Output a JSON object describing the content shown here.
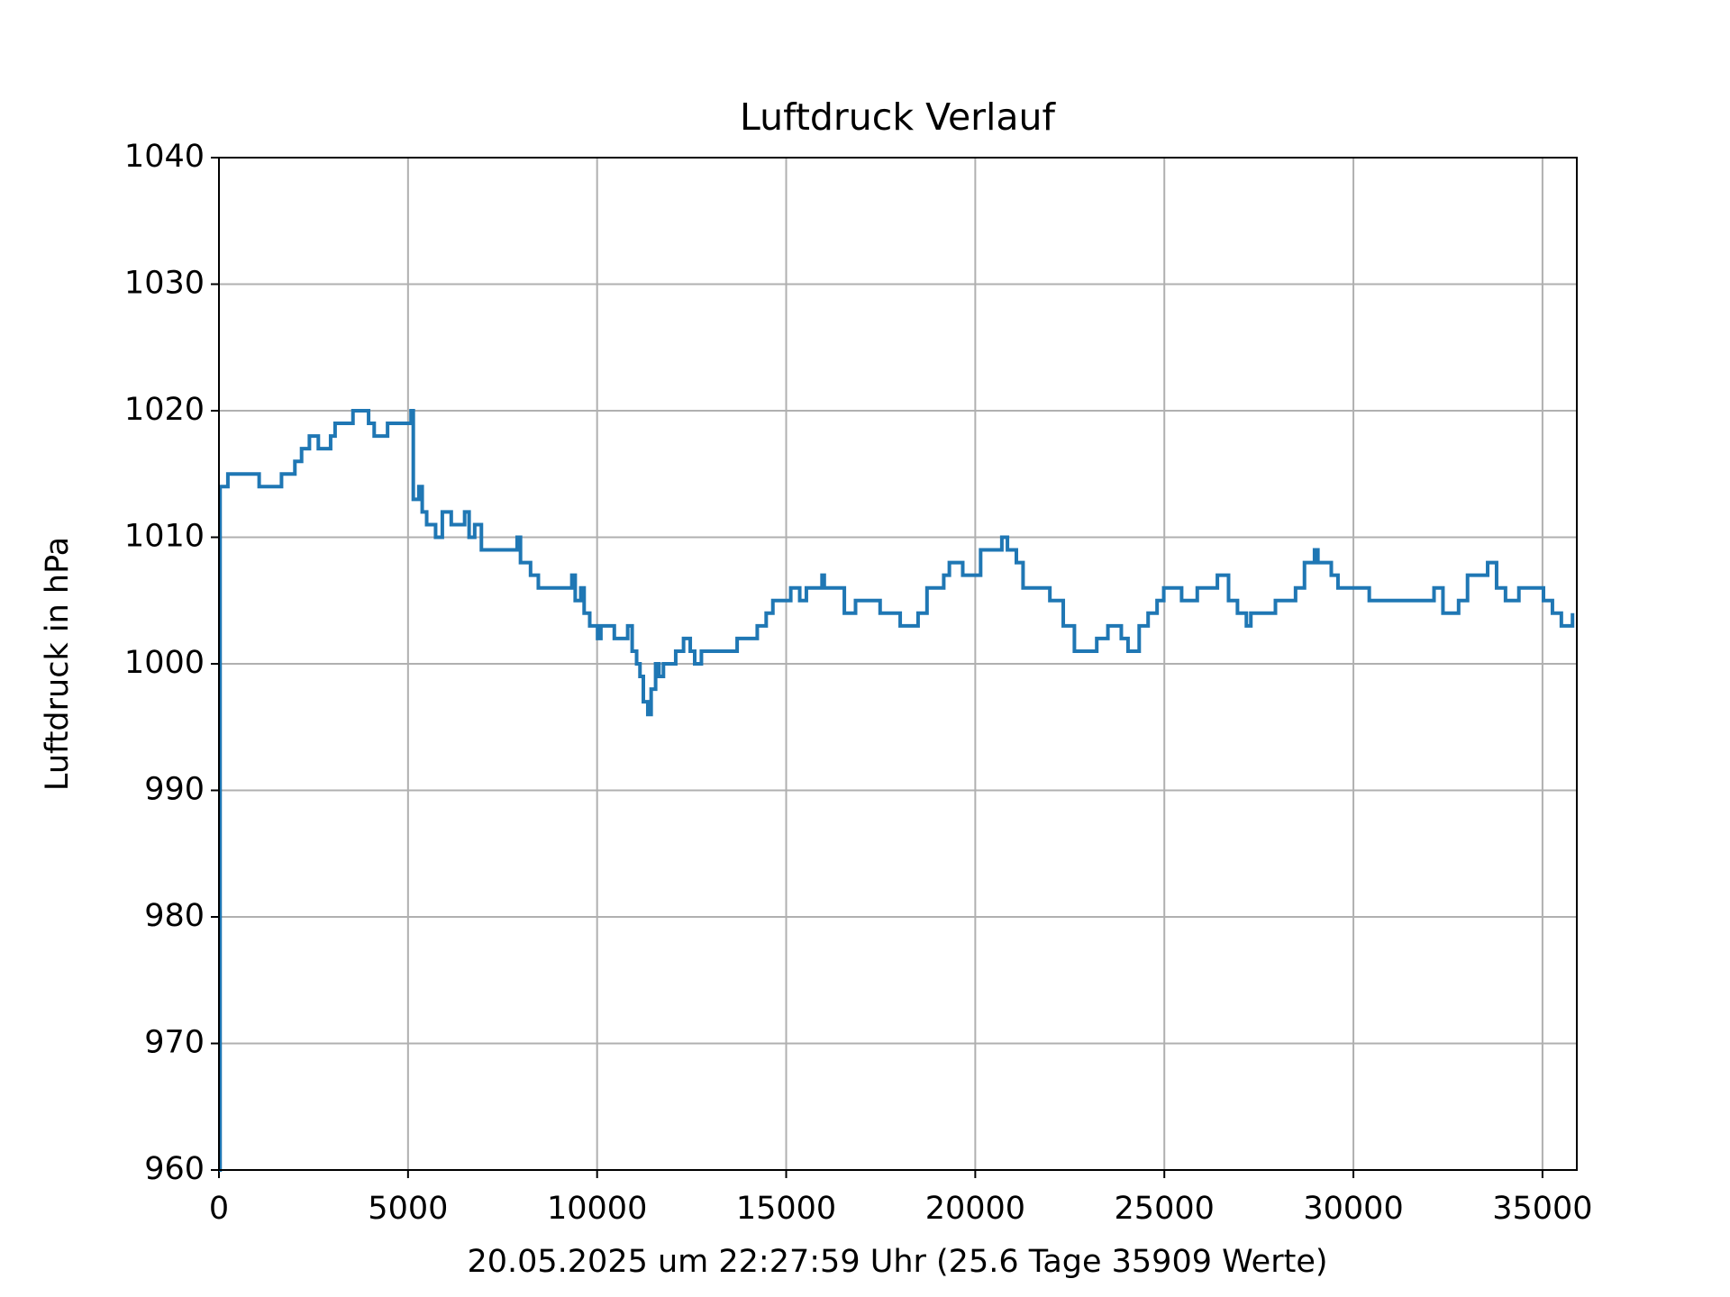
{
  "chart_data": {
    "type": "line",
    "title": "Luftdruck Verlauf",
    "x_label": "20.05.2025 um 22:27:59 Uhr (25.6 Tage 35909 Werte)",
    "y_label": "Luftdruck in hPa",
    "drawstyle": "steps-post",
    "grid": true,
    "xlim": [
      0,
      35908
    ],
    "ylim": [
      960,
      1040
    ],
    "xticks": [
      0,
      5000,
      10000,
      15000,
      20000,
      25000,
      30000,
      35000
    ],
    "yticks": [
      960,
      970,
      980,
      990,
      1000,
      1010,
      1020,
      1030,
      1040
    ],
    "x": [
      0,
      30,
      236,
      1063,
      1654,
      2008,
      2185,
      2392,
      2628,
      2953,
      3071,
      3544,
      3957,
      4105,
      4459,
      5080,
      5139,
      5286,
      5375,
      5493,
      5729,
      5907,
      6143,
      6497,
      6615,
      6763,
      6940,
      7885,
      7974,
      8240,
      8446,
      9332,
      9421,
      9569,
      9657,
      9805,
      10012,
      10100,
      10455,
      10809,
      10927,
      11045,
      11134,
      11223,
      11341,
      11429,
      11547,
      11636,
      11754,
      12079,
      12286,
      12463,
      12581,
      12758,
      13703,
      14235,
      14471,
      14648,
      15121,
      15358,
      15534,
      15948,
      16007,
      16538,
      16834,
      17484,
      18015,
      18488,
      18724,
      19167,
      19315,
      19669,
      20142,
      20703,
      20851,
      21087,
      21264,
      21973,
      22327,
      22622,
      23213,
      23508,
      23862,
      24040,
      24335,
      24571,
      24808,
      24985,
      25457,
      25871,
      26403,
      26698,
      26934,
      27170,
      27288,
      27938,
      28470,
      28706,
      28972,
      29061,
      29415,
      29592,
      30419,
      32132,
      32368,
      32782,
      33018,
      33550,
      33786,
      34022,
      34376,
      35026,
      35263,
      35499,
      35794
    ],
    "series": [
      {
        "name": "Luftdruck",
        "color": "#1f77b4",
        "values": [
          960,
          1014,
          1015,
          1014,
          1015,
          1016,
          1017,
          1018,
          1017,
          1018,
          1019,
          1020,
          1019,
          1018,
          1019,
          1020,
          1013,
          1014,
          1012,
          1011,
          1010,
          1012,
          1011,
          1012,
          1010,
          1011,
          1009,
          1010,
          1008,
          1007,
          1006,
          1007,
          1005,
          1006,
          1004,
          1003,
          1002,
          1003,
          1002,
          1003,
          1001,
          1000,
          999,
          997,
          996,
          998,
          1000,
          999,
          1000,
          1001,
          1002,
          1001,
          1000,
          1001,
          1002,
          1003,
          1004,
          1005,
          1006,
          1005,
          1006,
          1007,
          1006,
          1004,
          1005,
          1004,
          1003,
          1004,
          1006,
          1007,
          1008,
          1007,
          1009,
          1010,
          1009,
          1008,
          1006,
          1005,
          1003,
          1001,
          1002,
          1003,
          1002,
          1001,
          1003,
          1004,
          1005,
          1006,
          1005,
          1006,
          1007,
          1005,
          1004,
          1003,
          1004,
          1005,
          1006,
          1008,
          1009,
          1008,
          1007,
          1006,
          1005,
          1006,
          1004,
          1005,
          1007,
          1008,
          1006,
          1005,
          1006,
          1005,
          1004,
          1003,
          1004
        ]
      }
    ]
  }
}
